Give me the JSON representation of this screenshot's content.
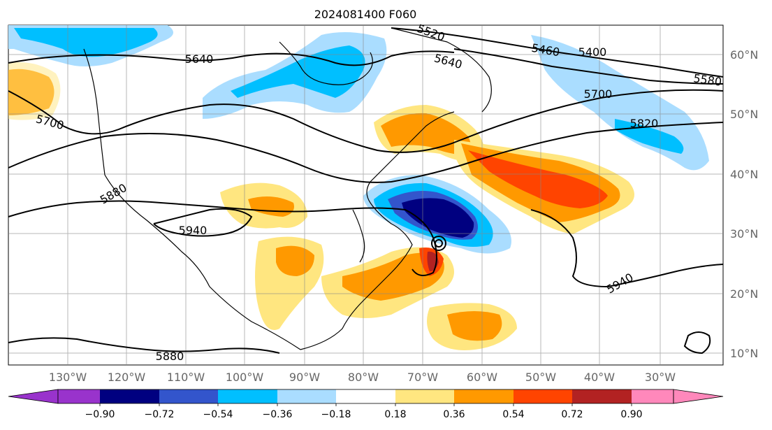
{
  "title": "2024081400 F060",
  "map": {
    "lon_labels": [
      "130°W",
      "120°W",
      "110°W",
      "100°W",
      "90°W",
      "80°W",
      "70°W",
      "60°W",
      "50°W",
      "40°W",
      "30°W"
    ],
    "lat_labels": [
      "60°N",
      "50°N",
      "40°N",
      "30°N",
      "20°N",
      "10°N"
    ],
    "contour_labels": [
      "5640",
      "5460",
      "5400",
      "5580",
      "5700",
      "5700",
      "5820",
      "5880",
      "5940",
      "5940",
      "5880",
      "5640",
      "5520"
    ]
  },
  "colorbar": {
    "ticks": [
      "−0.90",
      "−0.72",
      "−0.54",
      "−0.36",
      "−0.18",
      "0.18",
      "0.36",
      "0.54",
      "0.72",
      "0.90"
    ],
    "colors": [
      "#9933cc",
      "#000080",
      "#3355cc",
      "#00bfff",
      "#aaddff",
      "#ffffff",
      "#ffe680",
      "#ff9900",
      "#ff4400",
      "#b22222",
      "#ff88bb"
    ]
  },
  "palette": {
    "orange": "#ff9900",
    "light_yellow": "#ffe680",
    "red_orange": "#ff4400",
    "dark_red": "#b22222",
    "deep_blue": "#000080",
    "mid_blue": "#3355cc",
    "sky_blue": "#00bfff",
    "pale_blue": "#aaddff"
  }
}
